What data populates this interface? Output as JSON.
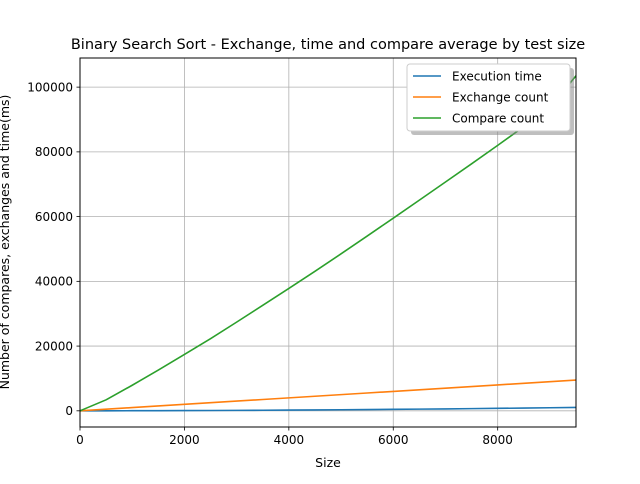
{
  "chart_data": {
    "type": "line",
    "title": "Binary Search Sort - Exchange, time and compare average by test size",
    "xlabel": "Size",
    "ylabel": "Number of compares, exchanges and time(ms)",
    "xlim": [
      0,
      9500
    ],
    "ylim": [
      -5000,
      109000
    ],
    "xticks": [
      0,
      2000,
      4000,
      6000,
      8000
    ],
    "yticks": [
      0,
      20000,
      40000,
      60000,
      80000,
      100000
    ],
    "xtick_labels": [
      "0",
      "2000",
      "4000",
      "6000",
      "8000"
    ],
    "ytick_labels": [
      "0",
      "20000",
      "40000",
      "60000",
      "80000",
      "100000"
    ],
    "grid": true,
    "legend_position": "upper right",
    "x": [
      0,
      500,
      1000,
      1500,
      2000,
      2500,
      3000,
      3500,
      4000,
      4500,
      5000,
      5500,
      6000,
      6500,
      7000,
      7500,
      8000,
      8500,
      9000,
      9500
    ],
    "series": [
      {
        "name": "Execution time",
        "color": "#1f77b4",
        "values": [
          0,
          10,
          25,
          45,
          70,
          100,
          135,
          175,
          220,
          270,
          325,
          385,
          450,
          520,
          595,
          675,
          760,
          850,
          945,
          1045
        ]
      },
      {
        "name": "Exchange count",
        "color": "#ff7f0e",
        "values": [
          0,
          500,
          1000,
          1500,
          2000,
          2500,
          3000,
          3500,
          4000,
          4500,
          5000,
          5500,
          6000,
          6500,
          7000,
          7500,
          8000,
          8500,
          9000,
          9500
        ]
      },
      {
        "name": "Compare count",
        "color": "#2ca02c",
        "values": [
          0,
          3400,
          7900,
          12600,
          17400,
          22300,
          27400,
          32600,
          37800,
          43100,
          48500,
          54000,
          59500,
          65100,
          70700,
          76300,
          82000,
          87800,
          93600,
          103500
        ]
      }
    ]
  }
}
